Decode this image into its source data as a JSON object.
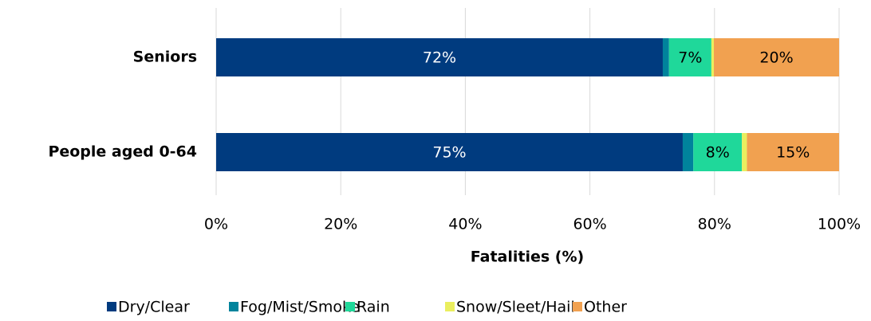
{
  "chart_data": {
    "type": "stacked_barh",
    "x_label": "Fatalities (%)",
    "categories": [
      "Seniors",
      "People aged 0-64"
    ],
    "series": [
      {
        "name": "Dry/Clear",
        "color": "#003b7f",
        "values": [
          71.7,
          74.9
        ],
        "value_labels": [
          "72%",
          "75%"
        ]
      },
      {
        "name": "Fog/Mist/Smoke",
        "color": "#00839c",
        "values": [
          1.0,
          1.7
        ]
      },
      {
        "name": "Rain",
        "color": "#1fd89a",
        "values": [
          6.8,
          7.8
        ],
        "value_labels": [
          "7%",
          "8%"
        ]
      },
      {
        "name": "Snow/Sleet/Hail",
        "color": "#eaee5e",
        "values": [
          0.4,
          0.8
        ]
      },
      {
        "name": "Other",
        "color": "#f1a150",
        "values": [
          20.1,
          14.8
        ],
        "value_labels": [
          "20%",
          "15%"
        ]
      }
    ],
    "xlim": [
      0,
      100
    ],
    "xticks": [
      {
        "value": 0,
        "label": "0%"
      },
      {
        "value": 20,
        "label": "20%"
      },
      {
        "value": 40,
        "label": "40%"
      },
      {
        "value": 60,
        "label": "60%"
      },
      {
        "value": 80,
        "label": "80%"
      },
      {
        "value": 100,
        "label": "100%"
      }
    ],
    "grid": true,
    "legend": "bottom"
  }
}
